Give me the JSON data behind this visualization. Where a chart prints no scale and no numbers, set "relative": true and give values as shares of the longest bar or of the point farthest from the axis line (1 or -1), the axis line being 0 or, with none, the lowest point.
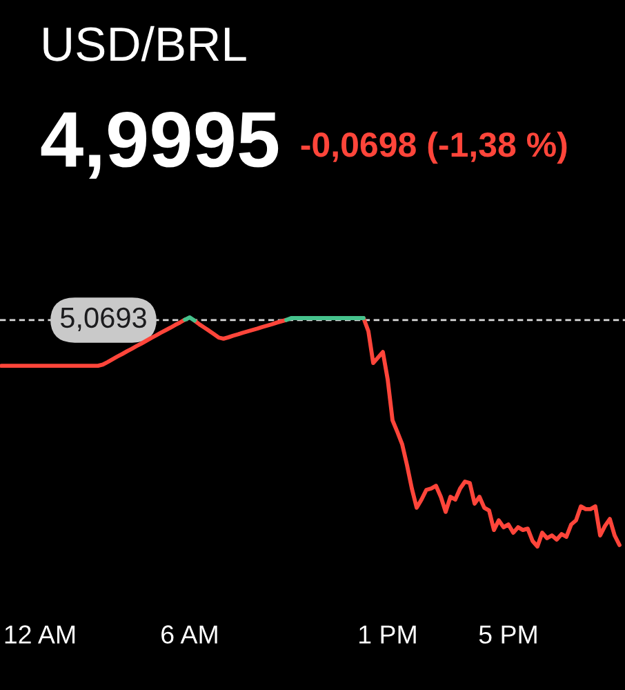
{
  "chart_data": {
    "type": "line",
    "title": "USD/BRL",
    "subtitle": "4,9995",
    "annotations": [
      "-0,0698 (-1,38 %)"
    ],
    "relative": true,
    "categories": [
      null,
      null,
      null,
      null,
      null,
      null,
      null,
      null,
      "12 AM",
      null,
      null,
      null,
      null,
      null,
      null,
      null,
      null,
      null,
      null,
      null,
      null,
      null,
      null,
      null,
      null,
      null,
      null,
      null,
      null,
      null,
      null,
      null,
      null,
      null,
      null,
      null,
      null,
      null,
      null,
      "6 AM",
      null,
      null,
      null,
      null,
      null,
      null,
      null,
      null,
      null,
      null,
      null,
      null,
      null,
      null,
      null,
      null,
      null,
      null,
      null,
      null,
      null,
      null,
      null,
      null,
      null,
      null,
      null,
      null,
      null,
      null,
      null,
      null,
      null,
      null,
      null,
      null,
      null,
      null,
      null,
      null,
      "1 PM",
      null,
      null,
      null,
      null,
      null,
      null,
      null,
      null,
      null,
      null,
      null,
      null,
      null,
      null,
      null,
      null,
      null,
      null,
      null,
      null,
      null,
      null,
      null,
      null,
      "5 PM",
      null,
      null,
      null,
      null,
      null,
      null,
      null,
      null,
      null,
      null,
      null,
      null,
      null,
      null,
      null,
      null,
      null,
      null,
      null,
      null,
      null,
      null,
      null
    ],
    "series": [
      {
        "color": "#ff453a",
        "values": [
          0.789,
          0.789,
          0.789,
          0.789,
          0.789,
          0.789,
          0.789,
          0.789,
          0.789,
          0.789,
          0.789,
          0.789,
          0.789,
          0.789,
          0.789,
          0.789,
          0.789,
          0.789,
          0.789,
          0.789,
          0.789,
          0.794,
          0.805,
          0.817,
          0.829,
          0.84,
          0.852,
          0.863,
          0.875,
          0.886,
          0.898,
          0.91,
          0.921,
          0.933,
          0.944,
          0.955,
          0.967,
          0.978,
          0.99,
          null,
          0.986,
          0.97,
          0.956,
          0.942,
          0.927,
          0.912,
          0.907,
          0.913,
          0.92,
          0.926,
          0.933,
          0.939,
          0.945,
          0.951,
          0.958,
          0.964,
          0.97,
          0.977,
          0.983,
          0.989,
          null,
          null,
          null,
          null,
          null,
          null,
          null,
          null,
          null,
          null,
          null,
          null,
          null,
          null,
          null,
          0.997,
          0.94,
          0.801,
          0.825,
          0.849,
          0.729,
          0.551,
          0.5,
          0.446,
          0.355,
          0.253,
          0.169,
          0.205,
          0.247,
          0.253,
          0.265,
          0.217,
          0.151,
          0.217,
          0.205,
          0.253,
          0.283,
          0.277,
          0.187,
          0.217,
          0.169,
          0.157,
          0.072,
          0.114,
          0.084,
          0.096,
          0.06,
          0.084,
          0.072,
          0.078,
          0.024,
          0,
          0.06,
          0.036,
          0.048,
          0.03,
          0.054,
          0.042,
          0.096,
          0.114,
          0.175,
          0.163,
          0.163,
          0.175,
          0.048,
          0.09,
          0.12,
          0.048,
          0.006
        ]
      },
      {
        "color": "#45c28c",
        "values": [
          null,
          null,
          null,
          null,
          null,
          null,
          null,
          null,
          null,
          null,
          null,
          null,
          null,
          null,
          null,
          null,
          null,
          null,
          null,
          null,
          null,
          null,
          null,
          null,
          null,
          null,
          null,
          null,
          null,
          null,
          null,
          null,
          null,
          null,
          null,
          null,
          null,
          null,
          null,
          null,
          null,
          null,
          null,
          null,
          null,
          null,
          null,
          null,
          null,
          null,
          null,
          null,
          null,
          null,
          null,
          null,
          null,
          null,
          null,
          0.989,
          0.997,
          0.997,
          0.997,
          0.997,
          0.997,
          0.997,
          0.997,
          0.997,
          0.997,
          0.997,
          0.997,
          0.997,
          0.997,
          0.997,
          0.997,
          0.997,
          null,
          null,
          null,
          null,
          null,
          null,
          null,
          null,
          null,
          null,
          null,
          null,
          null,
          null,
          null,
          null,
          null,
          null,
          null,
          null,
          null,
          null,
          null,
          null,
          null,
          null,
          null,
          null,
          null,
          null,
          null,
          null,
          null,
          null,
          null,
          null,
          null,
          null,
          null,
          null,
          null,
          null,
          null,
          null,
          null,
          null,
          null,
          null,
          null,
          null,
          null,
          null,
          null
        ]
      },
      {
        "color": "#45c28c",
        "values": [
          null,
          null,
          null,
          null,
          null,
          null,
          null,
          null,
          null,
          null,
          null,
          null,
          null,
          null,
          null,
          null,
          null,
          null,
          null,
          null,
          null,
          null,
          null,
          null,
          null,
          null,
          null,
          null,
          null,
          null,
          null,
          null,
          null,
          null,
          null,
          null,
          null,
          null,
          0.99,
          1.0,
          0.986,
          null,
          null,
          null,
          null,
          null,
          null,
          null,
          null,
          null,
          null,
          null,
          null,
          null,
          null,
          null,
          null,
          null,
          null,
          null,
          null,
          null,
          null,
          null,
          null,
          null,
          null,
          null,
          null,
          null,
          null,
          null,
          null,
          null,
          null,
          null,
          null,
          null,
          null,
          null,
          null,
          null,
          null,
          null,
          null,
          null,
          null,
          null,
          null,
          null,
          null,
          null,
          null,
          null,
          null,
          null,
          null,
          null,
          null,
          null,
          null,
          null,
          null,
          null,
          null,
          null,
          null,
          null,
          null,
          null,
          null,
          null,
          null,
          null,
          null,
          null,
          null,
          null,
          null,
          null,
          null,
          null,
          null,
          null,
          null,
          null,
          null,
          null,
          null
        ]
      }
    ],
    "ref_lines": [
      {
        "axis": "y",
        "value": 0.988,
        "label": "5,0693",
        "color": "#d9d9d9",
        "line_style": "dashed"
      }
    ]
  }
}
